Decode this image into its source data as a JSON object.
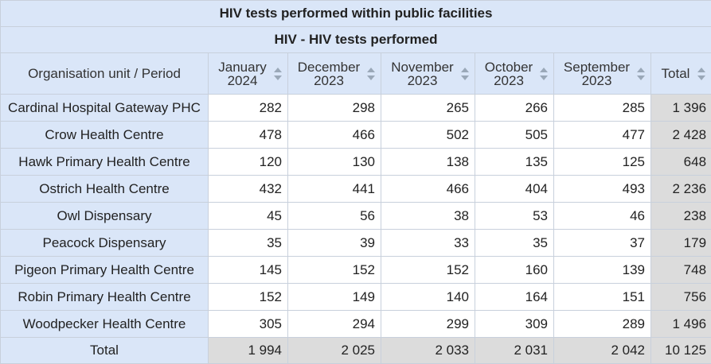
{
  "table": {
    "title": "HIV tests performed within public facilities",
    "subtitle": "HIV - HIV tests performed",
    "corner_label": "Organisation unit / Period",
    "periods": [
      {
        "line1": "January",
        "line2": "2024"
      },
      {
        "line1": "December",
        "line2": "2023"
      },
      {
        "line1": "November",
        "line2": "2023"
      },
      {
        "line1": "October",
        "line2": "2023"
      },
      {
        "line1": "September",
        "line2": "2023"
      }
    ],
    "total_header": "Total",
    "rows": [
      {
        "unit": "Cardinal Hospital Gateway PHC",
        "values": [
          "282",
          "298",
          "265",
          "266",
          "285"
        ],
        "total": "1 396"
      },
      {
        "unit": "Crow Health Centre",
        "values": [
          "478",
          "466",
          "502",
          "505",
          "477"
        ],
        "total": "2 428"
      },
      {
        "unit": "Hawk Primary Health Centre",
        "values": [
          "120",
          "130",
          "138",
          "135",
          "125"
        ],
        "total": "648"
      },
      {
        "unit": "Ostrich Health Centre",
        "values": [
          "432",
          "441",
          "466",
          "404",
          "493"
        ],
        "total": "2 236"
      },
      {
        "unit": "Owl Dispensary",
        "values": [
          "45",
          "56",
          "38",
          "53",
          "46"
        ],
        "total": "238"
      },
      {
        "unit": "Peacock Dispensary",
        "values": [
          "35",
          "39",
          "33",
          "35",
          "37"
        ],
        "total": "179"
      },
      {
        "unit": "Pigeon Primary Health Centre",
        "values": [
          "145",
          "152",
          "152",
          "160",
          "139"
        ],
        "total": "748"
      },
      {
        "unit": "Robin Primary Health Centre",
        "values": [
          "152",
          "149",
          "140",
          "164",
          "151"
        ],
        "total": "756"
      },
      {
        "unit": "Woodpecker Health Centre",
        "values": [
          "305",
          "294",
          "299",
          "309",
          "289"
        ],
        "total": "1 496"
      }
    ],
    "totals_row": {
      "label": "Total",
      "values": [
        "1 994",
        "2 025",
        "2 033",
        "2 031",
        "2 042"
      ],
      "total": "10 125"
    }
  },
  "icons": {
    "sort": "sort-arrows-icon"
  },
  "colors": {
    "header_bg": "#dae6f8",
    "total_bg": "#dcdcdc",
    "border": "#c8d0dc"
  }
}
